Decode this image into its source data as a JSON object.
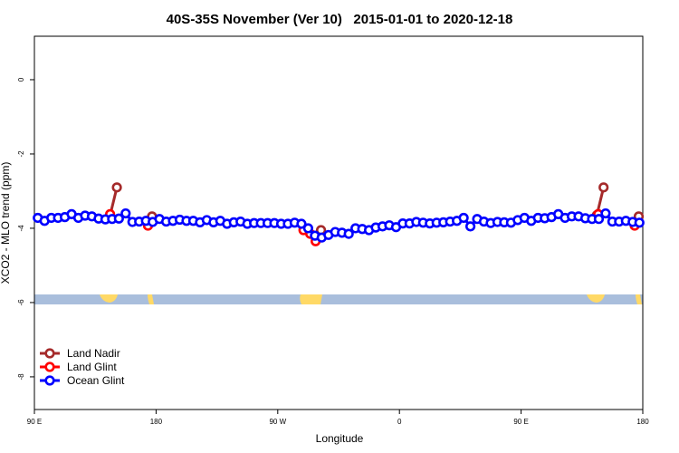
{
  "chart_data": {
    "type": "line",
    "title": "40S-35S November (Ver 10)   2015-01-01 to 2020-12-18",
    "xlabel": "Longitude",
    "ylabel": "XCO2 - MLO trend (ppm)",
    "xlim": [
      90,
      540
    ],
    "xticks": [
      {
        "value": 90,
        "label": "90 E"
      },
      {
        "value": 180,
        "label": "180"
      },
      {
        "value": 270,
        "label": "90 W"
      },
      {
        "value": 360,
        "label": "0"
      },
      {
        "value": 450,
        "label": "90 E"
      },
      {
        "value": 540,
        "label": "180"
      }
    ],
    "ylim": [
      -8.88,
      1.17
    ],
    "yticks": [
      0,
      -2,
      -4,
      -6,
      -8
    ],
    "legend": "bottom-left",
    "series": [
      {
        "name": "Land Nadir",
        "color": "#a52a2a",
        "x": [
          146,
          151,
          null,
          177,
          null,
          302,
          null,
          506,
          511,
          null,
          537
        ],
        "values": [
          -3.65,
          -2.9,
          null,
          -3.68,
          null,
          -4.05,
          null,
          -3.65,
          -2.9,
          null,
          -3.68
        ]
      },
      {
        "name": "Land Glint",
        "color": "#ff0000",
        "x": [
          146,
          null,
          174,
          null,
          289,
          294,
          298,
          null,
          507,
          null,
          534
        ],
        "values": [
          -3.62,
          null,
          -3.93,
          null,
          -4.05,
          -4.15,
          -4.35,
          null,
          -3.62,
          null,
          -3.93
        ]
      },
      {
        "name": "Ocean Glint",
        "color": "#0000ff",
        "x": [
          92.5,
          97.5,
          102.5,
          107.5,
          112.5,
          117.5,
          122.5,
          127.5,
          132.5,
          137.5,
          142.5,
          147.5,
          152.5,
          157.5,
          162.5,
          167.5,
          172.5,
          177.5,
          182.5,
          187.5,
          192.5,
          197.5,
          202.5,
          207.5,
          212.5,
          217.5,
          222.5,
          227.5,
          232.5,
          237.5,
          242.5,
          247.5,
          252.5,
          257.5,
          262.5,
          267.5,
          272.5,
          277.5,
          282.5,
          287.5,
          292.5,
          297.5,
          302.5,
          307.5,
          312.5,
          317.5,
          322.5,
          327.5,
          332.5,
          337.5,
          342.5,
          347.5,
          352.5,
          357.5,
          362.5,
          367.5,
          372.5,
          377.5,
          382.5,
          387.5,
          392.5,
          397.5,
          402.5,
          407.5,
          412.5,
          417.5,
          422.5,
          427.5,
          432.5,
          437.5,
          442.5,
          447.5,
          452.5,
          457.5,
          462.5,
          467.5,
          472.5,
          477.5,
          482.5,
          487.5,
          492.5,
          497.5,
          502.5,
          507.5,
          512.5,
          517.5,
          522.5,
          527.5,
          532.5,
          537.5
        ],
        "values": [
          -3.72,
          -3.8,
          -3.72,
          -3.72,
          -3.7,
          -3.62,
          -3.72,
          -3.66,
          -3.68,
          -3.74,
          -3.76,
          -3.75,
          -3.74,
          -3.6,
          -3.83,
          -3.82,
          -3.8,
          -3.83,
          -3.75,
          -3.82,
          -3.8,
          -3.77,
          -3.8,
          -3.8,
          -3.84,
          -3.78,
          -3.84,
          -3.8,
          -3.88,
          -3.84,
          -3.82,
          -3.88,
          -3.86,
          -3.86,
          -3.86,
          -3.86,
          -3.88,
          -3.88,
          -3.85,
          -3.88,
          -4.0,
          -4.2,
          -4.25,
          -4.18,
          -4.1,
          -4.12,
          -4.15,
          -4.0,
          -4.02,
          -4.05,
          -3.98,
          -3.95,
          -3.92,
          -3.97,
          -3.87,
          -3.87,
          -3.83,
          -3.85,
          -3.87,
          -3.85,
          -3.84,
          -3.82,
          -3.8,
          -3.72,
          -3.95,
          -3.75,
          -3.82,
          -3.86,
          -3.83,
          -3.84,
          -3.85,
          -3.78,
          -3.72,
          -3.8,
          -3.72,
          -3.73,
          -3.7,
          -3.62,
          -3.72,
          -3.68,
          -3.68,
          -3.73,
          -3.75,
          -3.75,
          -3.6,
          -3.82,
          -3.82,
          -3.8,
          -3.83,
          -3.85
        ]
      }
    ]
  }
}
